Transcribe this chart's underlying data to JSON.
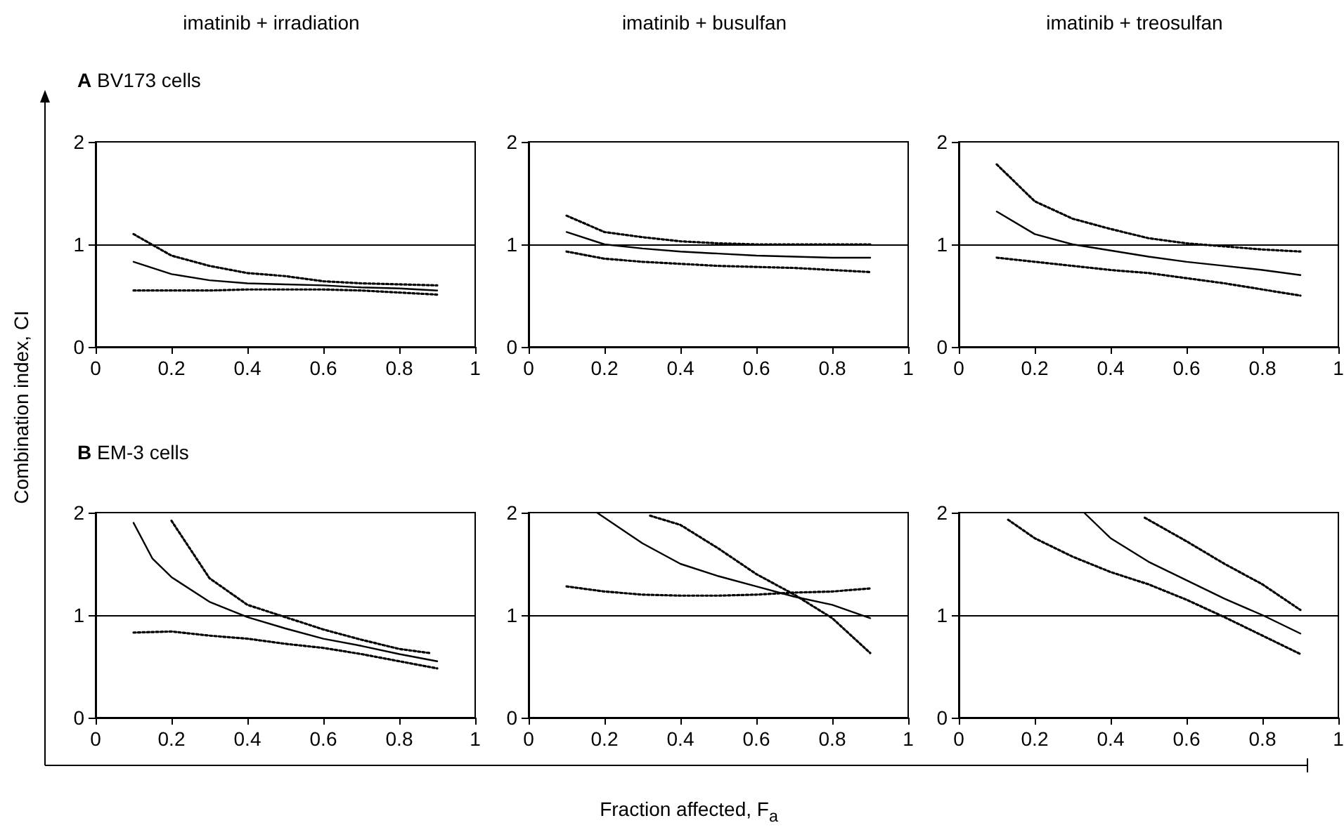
{
  "chart_data": [
    {
      "type": "line",
      "title": "imatinib + irradiation",
      "annotations": [
        "A BV173 cells"
      ],
      "ylabel": "Combination index, CI",
      "xlim": [
        0,
        1
      ],
      "xticks": [
        0,
        0.2,
        0.4,
        0.6,
        0.8,
        1
      ],
      "ylim": [
        0,
        2
      ],
      "yticks": [
        0,
        1,
        2
      ],
      "ref_lines": [
        {
          "axis": "y",
          "value": 1
        }
      ],
      "marker": "none",
      "series": [
        {
          "color": "#000000",
          "line_style": "solid",
          "x": [
            0.1,
            0.2,
            0.3,
            0.4,
            0.5,
            0.6,
            0.7,
            0.8,
            0.9
          ],
          "values": [
            0.83,
            0.71,
            0.65,
            0.62,
            0.61,
            0.6,
            0.58,
            0.57,
            0.55
          ]
        },
        {
          "color": "#000000",
          "line_style": "dotted",
          "x": [
            0.1,
            0.2,
            0.3,
            0.4,
            0.5,
            0.6,
            0.7,
            0.8,
            0.9
          ],
          "values": [
            1.1,
            0.89,
            0.79,
            0.72,
            0.69,
            0.64,
            0.62,
            0.61,
            0.6
          ]
        },
        {
          "color": "#000000",
          "line_style": "dotted",
          "x": [
            0.1,
            0.2,
            0.3,
            0.4,
            0.5,
            0.6,
            0.7,
            0.8,
            0.9
          ],
          "values": [
            0.55,
            0.55,
            0.55,
            0.56,
            0.56,
            0.56,
            0.55,
            0.53,
            0.51
          ]
        }
      ]
    },
    {
      "type": "line",
      "title": "imatinib + busulfan",
      "xlim": [
        0,
        1
      ],
      "xticks": [
        0,
        0.2,
        0.4,
        0.6,
        0.8,
        1
      ],
      "ylim": [
        0,
        2
      ],
      "yticks": [
        0,
        1,
        2
      ],
      "ref_lines": [
        {
          "axis": "y",
          "value": 1
        }
      ],
      "marker": "none",
      "series": [
        {
          "color": "#000000",
          "line_style": "solid",
          "x": [
            0.1,
            0.2,
            0.3,
            0.4,
            0.5,
            0.6,
            0.7,
            0.8,
            0.9
          ],
          "values": [
            1.12,
            1.0,
            0.96,
            0.93,
            0.91,
            0.89,
            0.88,
            0.87,
            0.87
          ]
        },
        {
          "color": "#000000",
          "line_style": "dotted",
          "x": [
            0.1,
            0.2,
            0.3,
            0.4,
            0.5,
            0.6,
            0.7,
            0.8,
            0.9
          ],
          "values": [
            1.28,
            1.12,
            1.07,
            1.03,
            1.01,
            1.0,
            1.0,
            1.0,
            1.0
          ]
        },
        {
          "color": "#000000",
          "line_style": "dotted",
          "x": [
            0.1,
            0.2,
            0.3,
            0.4,
            0.5,
            0.6,
            0.7,
            0.8,
            0.9
          ],
          "values": [
            0.93,
            0.86,
            0.83,
            0.81,
            0.79,
            0.78,
            0.77,
            0.75,
            0.73
          ]
        }
      ]
    },
    {
      "type": "line",
      "title": "imatinib + treosulfan",
      "xlim": [
        0,
        1
      ],
      "xticks": [
        0,
        0.2,
        0.4,
        0.6,
        0.8,
        1
      ],
      "ylim": [
        0,
        2
      ],
      "yticks": [
        0,
        1,
        2
      ],
      "ref_lines": [
        {
          "axis": "y",
          "value": 1
        }
      ],
      "marker": "none",
      "series": [
        {
          "color": "#000000",
          "line_style": "solid",
          "x": [
            0.1,
            0.2,
            0.3,
            0.4,
            0.5,
            0.6,
            0.7,
            0.8,
            0.9
          ],
          "values": [
            1.32,
            1.1,
            1.0,
            0.94,
            0.88,
            0.83,
            0.79,
            0.75,
            0.7
          ]
        },
        {
          "color": "#000000",
          "line_style": "dotted",
          "x": [
            0.1,
            0.2,
            0.3,
            0.4,
            0.5,
            0.6,
            0.7,
            0.8,
            0.9
          ],
          "values": [
            1.78,
            1.42,
            1.25,
            1.15,
            1.06,
            1.01,
            0.98,
            0.95,
            0.93
          ]
        },
        {
          "color": "#000000",
          "line_style": "dotted",
          "x": [
            0.1,
            0.2,
            0.3,
            0.4,
            0.5,
            0.6,
            0.7,
            0.8,
            0.9
          ],
          "values": [
            0.87,
            0.83,
            0.79,
            0.75,
            0.72,
            0.67,
            0.62,
            0.56,
            0.5
          ]
        }
      ]
    },
    {
      "type": "line",
      "annotations": [
        "B EM-3 cells"
      ],
      "xlim": [
        0,
        1
      ],
      "xticks": [
        0,
        0.2,
        0.4,
        0.6,
        0.8,
        1
      ],
      "ylim": [
        0,
        2
      ],
      "yticks": [
        0,
        1,
        2
      ],
      "ref_lines": [
        {
          "axis": "y",
          "value": 1
        }
      ],
      "marker": "none",
      "series": [
        {
          "color": "#000000",
          "line_style": "solid",
          "x": [
            0.1,
            0.15,
            0.2,
            0.3,
            0.4,
            0.5,
            0.6,
            0.7,
            0.8,
            0.9
          ],
          "values": [
            1.9,
            1.55,
            1.37,
            1.13,
            0.98,
            0.87,
            0.77,
            0.7,
            0.62,
            0.55
          ]
        },
        {
          "color": "#000000",
          "line_style": "dotted",
          "x": [
            0.2,
            0.3,
            0.4,
            0.5,
            0.6,
            0.7,
            0.8,
            0.88
          ],
          "values": [
            1.92,
            1.36,
            1.1,
            0.98,
            0.86,
            0.76,
            0.67,
            0.63
          ]
        },
        {
          "color": "#000000",
          "line_style": "dotted",
          "x": [
            0.1,
            0.2,
            0.3,
            0.4,
            0.5,
            0.6,
            0.7,
            0.8,
            0.9
          ],
          "values": [
            0.83,
            0.84,
            0.8,
            0.77,
            0.72,
            0.68,
            0.62,
            0.55,
            0.48
          ]
        }
      ]
    },
    {
      "type": "line",
      "xlabel": "Fraction affected, F$_{a}$",
      "xlim": [
        0,
        1
      ],
      "xticks": [
        0,
        0.2,
        0.4,
        0.6,
        0.8,
        1
      ],
      "ylim": [
        0,
        2
      ],
      "yticks": [
        0,
        1,
        2
      ],
      "ref_lines": [
        {
          "axis": "y",
          "value": 1
        }
      ],
      "marker": "none",
      "series": [
        {
          "color": "#000000",
          "line_style": "solid",
          "x": [
            0.18,
            0.3,
            0.4,
            0.5,
            0.6,
            0.7,
            0.8,
            0.9
          ],
          "values": [
            2.0,
            1.7,
            1.5,
            1.38,
            1.28,
            1.18,
            1.1,
            0.97
          ]
        },
        {
          "color": "#000000",
          "line_style": "dotted",
          "x": [
            0.32,
            0.4,
            0.5,
            0.6,
            0.7,
            0.8,
            0.9
          ],
          "values": [
            1.97,
            1.88,
            1.65,
            1.4,
            1.2,
            0.97,
            0.63
          ]
        },
        {
          "color": "#000000",
          "line_style": "dotted",
          "x": [
            0.1,
            0.2,
            0.3,
            0.4,
            0.5,
            0.6,
            0.7,
            0.8,
            0.9
          ],
          "values": [
            1.28,
            1.23,
            1.2,
            1.19,
            1.19,
            1.2,
            1.22,
            1.23,
            1.26
          ]
        }
      ]
    },
    {
      "type": "line",
      "xlim": [
        0,
        1
      ],
      "xticks": [
        0,
        0.2,
        0.4,
        0.6,
        0.8,
        1
      ],
      "ylim": [
        0,
        2
      ],
      "yticks": [
        0,
        1,
        2
      ],
      "ref_lines": [
        {
          "axis": "y",
          "value": 1
        }
      ],
      "marker": "none",
      "series": [
        {
          "color": "#000000",
          "line_style": "solid",
          "x": [
            0.33,
            0.4,
            0.5,
            0.6,
            0.7,
            0.8,
            0.9
          ],
          "values": [
            2.0,
            1.75,
            1.52,
            1.34,
            1.16,
            1.0,
            0.82
          ]
        },
        {
          "color": "#000000",
          "line_style": "dotted",
          "x": [
            0.49,
            0.6,
            0.7,
            0.8,
            0.9
          ],
          "values": [
            1.95,
            1.72,
            1.5,
            1.3,
            1.05
          ]
        },
        {
          "color": "#000000",
          "line_style": "dotted",
          "x": [
            0.13,
            0.2,
            0.3,
            0.4,
            0.5,
            0.6,
            0.7,
            0.8,
            0.9
          ],
          "values": [
            1.93,
            1.75,
            1.57,
            1.42,
            1.3,
            1.15,
            0.98,
            0.8,
            0.62
          ]
        }
      ]
    }
  ]
}
